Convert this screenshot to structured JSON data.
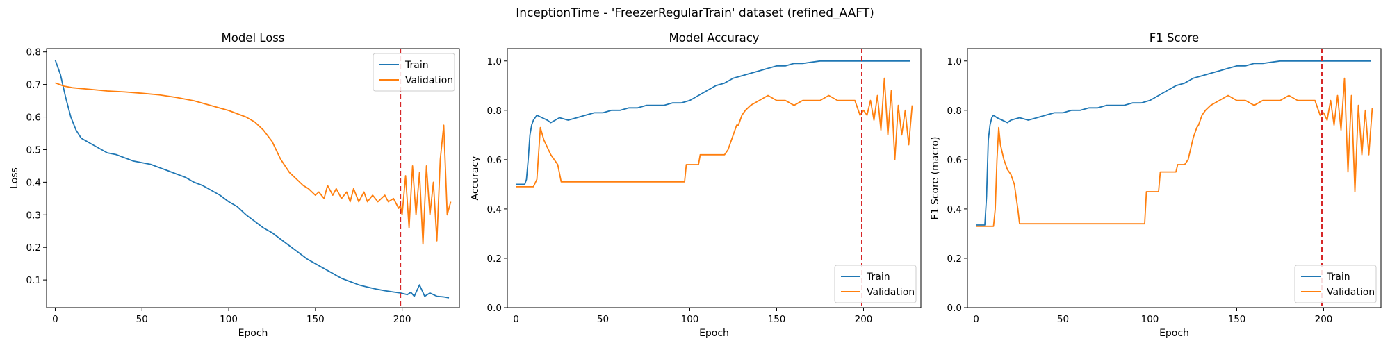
{
  "figure": {
    "suptitle": "InceptionTime - 'FreezerRegularTrain' dataset (refined_AAFT)"
  },
  "colors": {
    "train": "#1f77b4",
    "validation": "#ff7f0e",
    "marker": "#d62728"
  },
  "chart_data": [
    {
      "type": "line",
      "title": "Model Loss",
      "xlabel": "Epoch",
      "ylabel": "Loss",
      "xlim": [
        -5,
        233
      ],
      "ylim": [
        0.015,
        0.81
      ],
      "xticks": [
        "0",
        "50",
        "100",
        "150",
        "200"
      ],
      "yticks": [
        "0.1",
        "0.2",
        "0.3",
        "0.4",
        "0.5",
        "0.6",
        "0.7",
        "0.8"
      ],
      "grid": false,
      "legend": "top-right",
      "vline_x": 199,
      "series": [
        {
          "name": "Train",
          "x": [
            0,
            3,
            6,
            9,
            12,
            15,
            20,
            25,
            30,
            35,
            40,
            45,
            50,
            55,
            60,
            65,
            70,
            75,
            80,
            85,
            90,
            95,
            100,
            105,
            110,
            115,
            120,
            125,
            130,
            135,
            140,
            145,
            150,
            155,
            160,
            165,
            170,
            175,
            180,
            185,
            190,
            195,
            199,
            203,
            205,
            207,
            210,
            213,
            216,
            220,
            224,
            227
          ],
          "y": [
            0.775,
            0.73,
            0.66,
            0.6,
            0.56,
            0.535,
            0.52,
            0.505,
            0.49,
            0.485,
            0.475,
            0.465,
            0.46,
            0.455,
            0.445,
            0.435,
            0.425,
            0.415,
            0.4,
            0.39,
            0.375,
            0.36,
            0.34,
            0.325,
            0.3,
            0.28,
            0.26,
            0.245,
            0.225,
            0.205,
            0.185,
            0.165,
            0.15,
            0.135,
            0.12,
            0.105,
            0.095,
            0.085,
            0.078,
            0.072,
            0.067,
            0.063,
            0.06,
            0.055,
            0.062,
            0.05,
            0.085,
            0.05,
            0.06,
            0.05,
            0.048,
            0.045
          ]
        },
        {
          "name": "Validation",
          "x": [
            0,
            5,
            10,
            20,
            30,
            40,
            50,
            60,
            70,
            80,
            90,
            100,
            110,
            115,
            120,
            125,
            130,
            135,
            140,
            143,
            146,
            150,
            152,
            155,
            157,
            160,
            162,
            165,
            168,
            170,
            172,
            175,
            178,
            180,
            183,
            186,
            190,
            192,
            195,
            198,
            199,
            200,
            202,
            204,
            206,
            208,
            210,
            212,
            214,
            216,
            218,
            220,
            222,
            224,
            226,
            228
          ],
          "y": [
            0.705,
            0.695,
            0.69,
            0.685,
            0.68,
            0.677,
            0.673,
            0.668,
            0.66,
            0.65,
            0.635,
            0.62,
            0.6,
            0.585,
            0.56,
            0.525,
            0.47,
            0.43,
            0.405,
            0.39,
            0.38,
            0.36,
            0.37,
            0.35,
            0.39,
            0.36,
            0.38,
            0.35,
            0.37,
            0.34,
            0.38,
            0.34,
            0.37,
            0.34,
            0.36,
            0.34,
            0.36,
            0.34,
            0.35,
            0.32,
            0.33,
            0.3,
            0.42,
            0.26,
            0.45,
            0.3,
            0.43,
            0.21,
            0.45,
            0.3,
            0.4,
            0.22,
            0.47,
            0.575,
            0.3,
            0.34
          ]
        }
      ]
    },
    {
      "type": "line",
      "title": "Model Accuracy",
      "xlabel": "Epoch",
      "ylabel": "Accuracy",
      "xlim": [
        -5,
        233
      ],
      "ylim": [
        0.0,
        1.05
      ],
      "xticks": [
        "0",
        "50",
        "100",
        "150",
        "200"
      ],
      "yticks": [
        "0.0",
        "0.2",
        "0.4",
        "0.6",
        "0.8",
        "1.0"
      ],
      "grid": false,
      "legend": "bottom-right",
      "vline_x": 199,
      "series": [
        {
          "name": "Train",
          "x": [
            0,
            5,
            6,
            7,
            8,
            9,
            10,
            12,
            15,
            18,
            20,
            25,
            30,
            35,
            40,
            45,
            50,
            55,
            60,
            65,
            70,
            75,
            80,
            85,
            90,
            95,
            100,
            105,
            110,
            115,
            120,
            125,
            130,
            135,
            140,
            145,
            150,
            155,
            160,
            165,
            170,
            175,
            180,
            185,
            190,
            195,
            199,
            205,
            210,
            215,
            220,
            227
          ],
          "y": [
            0.5,
            0.5,
            0.52,
            0.6,
            0.7,
            0.74,
            0.76,
            0.78,
            0.77,
            0.76,
            0.75,
            0.77,
            0.76,
            0.77,
            0.78,
            0.79,
            0.79,
            0.8,
            0.8,
            0.81,
            0.81,
            0.82,
            0.82,
            0.82,
            0.83,
            0.83,
            0.84,
            0.86,
            0.88,
            0.9,
            0.91,
            0.93,
            0.94,
            0.95,
            0.96,
            0.97,
            0.98,
            0.98,
            0.99,
            0.99,
            0.995,
            1.0,
            1.0,
            1.0,
            1.0,
            1.0,
            1.0,
            1.0,
            1.0,
            1.0,
            1.0,
            1.0
          ]
        },
        {
          "name": "Validation",
          "x": [
            0,
            10,
            12,
            14,
            16,
            18,
            20,
            22,
            24,
            26,
            30,
            40,
            50,
            60,
            70,
            80,
            90,
            97,
            98,
            100,
            105,
            106,
            110,
            115,
            120,
            122,
            125,
            127,
            128,
            130,
            132,
            135,
            140,
            145,
            150,
            155,
            160,
            165,
            170,
            175,
            180,
            185,
            190,
            195,
            198,
            200,
            202,
            204,
            206,
            208,
            210,
            212,
            214,
            216,
            218,
            220,
            222,
            224,
            226,
            228
          ],
          "y": [
            0.49,
            0.49,
            0.52,
            0.73,
            0.68,
            0.65,
            0.62,
            0.6,
            0.58,
            0.51,
            0.51,
            0.51,
            0.51,
            0.51,
            0.51,
            0.51,
            0.51,
            0.51,
            0.58,
            0.58,
            0.58,
            0.62,
            0.62,
            0.62,
            0.62,
            0.64,
            0.7,
            0.74,
            0.74,
            0.78,
            0.8,
            0.82,
            0.84,
            0.86,
            0.84,
            0.84,
            0.82,
            0.84,
            0.84,
            0.84,
            0.86,
            0.84,
            0.84,
            0.84,
            0.78,
            0.8,
            0.78,
            0.84,
            0.76,
            0.86,
            0.72,
            0.93,
            0.7,
            0.88,
            0.6,
            0.82,
            0.7,
            0.8,
            0.66,
            0.82
          ]
        }
      ]
    },
    {
      "type": "line",
      "title": "F1 Score",
      "xlabel": "Epoch",
      "ylabel": "F1 Score (macro)",
      "xlim": [
        -5,
        233
      ],
      "ylim": [
        0.0,
        1.05
      ],
      "xticks": [
        "0",
        "50",
        "100",
        "150",
        "200"
      ],
      "yticks": [
        "0.0",
        "0.2",
        "0.4",
        "0.6",
        "0.8",
        "1.0"
      ],
      "grid": false,
      "legend": "bottom-right",
      "vline_x": 199,
      "series": [
        {
          "name": "Train",
          "x": [
            0,
            5,
            6,
            7,
            8,
            9,
            10,
            12,
            15,
            18,
            20,
            25,
            30,
            35,
            40,
            45,
            50,
            55,
            60,
            65,
            70,
            75,
            80,
            85,
            90,
            95,
            100,
            105,
            110,
            115,
            120,
            125,
            130,
            135,
            140,
            145,
            150,
            155,
            160,
            165,
            170,
            175,
            180,
            185,
            190,
            195,
            199,
            205,
            210,
            215,
            220,
            227
          ],
          "y": [
            0.335,
            0.335,
            0.45,
            0.68,
            0.74,
            0.77,
            0.78,
            0.77,
            0.76,
            0.75,
            0.76,
            0.77,
            0.76,
            0.77,
            0.78,
            0.79,
            0.79,
            0.8,
            0.8,
            0.81,
            0.81,
            0.82,
            0.82,
            0.82,
            0.83,
            0.83,
            0.84,
            0.86,
            0.88,
            0.9,
            0.91,
            0.93,
            0.94,
            0.95,
            0.96,
            0.97,
            0.98,
            0.98,
            0.99,
            0.99,
            0.995,
            1.0,
            1.0,
            1.0,
            1.0,
            1.0,
            1.0,
            1.0,
            1.0,
            1.0,
            1.0,
            1.0
          ]
        },
        {
          "name": "Validation",
          "x": [
            0,
            10,
            11,
            12,
            13,
            14,
            16,
            18,
            20,
            22,
            24,
            25,
            26,
            30,
            40,
            50,
            60,
            70,
            80,
            90,
            97,
            98,
            100,
            105,
            106,
            110,
            115,
            116,
            120,
            122,
            125,
            127,
            128,
            130,
            132,
            135,
            140,
            145,
            150,
            155,
            160,
            165,
            170,
            175,
            180,
            185,
            190,
            195,
            198,
            200,
            202,
            204,
            206,
            208,
            210,
            212,
            214,
            216,
            218,
            220,
            222,
            224,
            226,
            228
          ],
          "y": [
            0.33,
            0.33,
            0.4,
            0.6,
            0.73,
            0.66,
            0.6,
            0.56,
            0.54,
            0.5,
            0.4,
            0.34,
            0.34,
            0.34,
            0.34,
            0.34,
            0.34,
            0.34,
            0.34,
            0.34,
            0.34,
            0.47,
            0.47,
            0.47,
            0.55,
            0.55,
            0.55,
            0.58,
            0.58,
            0.6,
            0.69,
            0.73,
            0.74,
            0.78,
            0.8,
            0.82,
            0.84,
            0.86,
            0.84,
            0.84,
            0.82,
            0.84,
            0.84,
            0.84,
            0.86,
            0.84,
            0.84,
            0.84,
            0.78,
            0.79,
            0.76,
            0.84,
            0.74,
            0.86,
            0.72,
            0.93,
            0.55,
            0.86,
            0.47,
            0.82,
            0.62,
            0.8,
            0.62,
            0.81
          ]
        }
      ]
    }
  ]
}
